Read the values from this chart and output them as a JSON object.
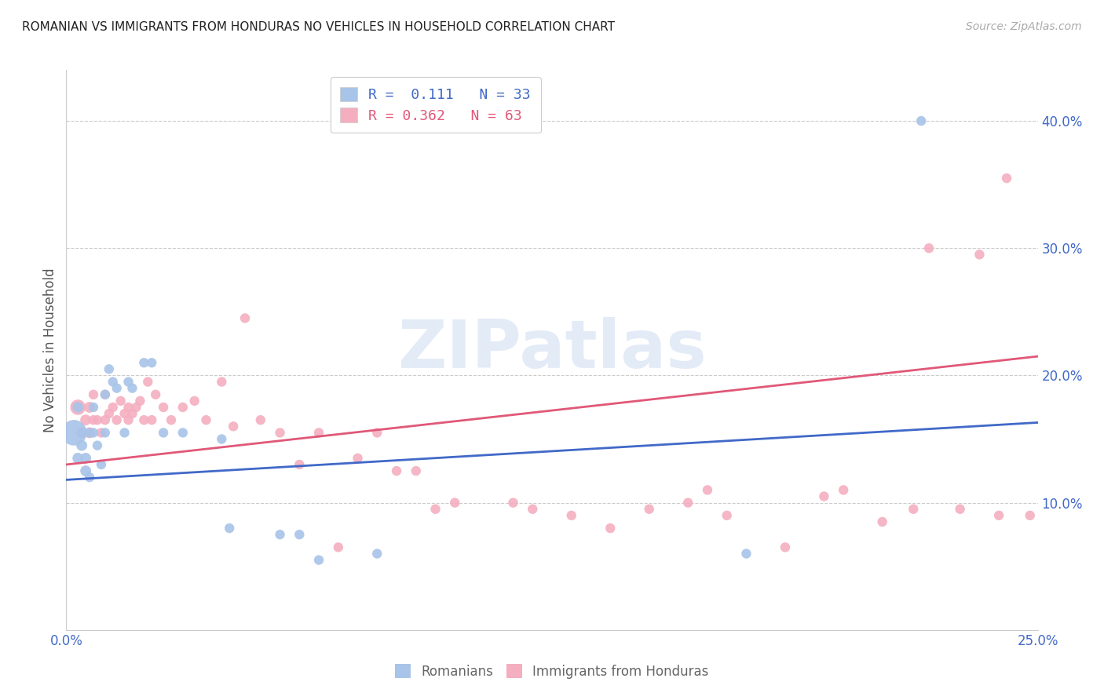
{
  "title": "ROMANIAN VS IMMIGRANTS FROM HONDURAS NO VEHICLES IN HOUSEHOLD CORRELATION CHART",
  "source": "Source: ZipAtlas.com",
  "ylabel": "No Vehicles in Household",
  "ytick_vals": [
    0.1,
    0.2,
    0.3,
    0.4
  ],
  "ytick_labels": [
    "10.0%",
    "20.0%",
    "30.0%",
    "40.0%"
  ],
  "xlim": [
    0.0,
    0.25
  ],
  "ylim": [
    0.0,
    0.44
  ],
  "blue_R": "0.111",
  "blue_N": "33",
  "pink_R": "0.362",
  "pink_N": "63",
  "blue_color": "#a8c4e8",
  "pink_color": "#f4aec0",
  "blue_line_color": "#4169c8",
  "pink_line_color": "#e05878",
  "watermark": "ZIPatlas",
  "legend_label_blue": "Romanians",
  "legend_label_pink": "Immigrants from Honduras",
  "blue_scatter_x": [
    0.002,
    0.003,
    0.003,
    0.004,
    0.004,
    0.005,
    0.005,
    0.006,
    0.006,
    0.007,
    0.007,
    0.008,
    0.009,
    0.01,
    0.01,
    0.011,
    0.012,
    0.013,
    0.015,
    0.016,
    0.017,
    0.02,
    0.022,
    0.025,
    0.03,
    0.04,
    0.042,
    0.055,
    0.06,
    0.065,
    0.08,
    0.175,
    0.22
  ],
  "blue_scatter_y": [
    0.155,
    0.175,
    0.135,
    0.155,
    0.145,
    0.135,
    0.125,
    0.155,
    0.12,
    0.155,
    0.175,
    0.145,
    0.13,
    0.185,
    0.155,
    0.205,
    0.195,
    0.19,
    0.155,
    0.195,
    0.19,
    0.21,
    0.21,
    0.155,
    0.155,
    0.15,
    0.08,
    0.075,
    0.075,
    0.055,
    0.06,
    0.06,
    0.4
  ],
  "blue_scatter_size": [
    550,
    100,
    100,
    100,
    100,
    100,
    100,
    80,
    80,
    80,
    80,
    80,
    80,
    80,
    80,
    80,
    80,
    80,
    80,
    80,
    80,
    80,
    80,
    80,
    80,
    80,
    80,
    80,
    80,
    80,
    80,
    80,
    80
  ],
  "pink_scatter_x": [
    0.003,
    0.004,
    0.005,
    0.006,
    0.006,
    0.007,
    0.007,
    0.008,
    0.009,
    0.01,
    0.01,
    0.011,
    0.012,
    0.013,
    0.014,
    0.015,
    0.016,
    0.016,
    0.017,
    0.018,
    0.019,
    0.02,
    0.021,
    0.022,
    0.023,
    0.025,
    0.027,
    0.03,
    0.033,
    0.036,
    0.04,
    0.043,
    0.046,
    0.05,
    0.055,
    0.06,
    0.065,
    0.07,
    0.075,
    0.08,
    0.085,
    0.09,
    0.095,
    0.1,
    0.115,
    0.12,
    0.13,
    0.14,
    0.15,
    0.16,
    0.165,
    0.17,
    0.185,
    0.195,
    0.2,
    0.21,
    0.218,
    0.222,
    0.23,
    0.235,
    0.24,
    0.242,
    0.248
  ],
  "pink_scatter_y": [
    0.175,
    0.155,
    0.165,
    0.155,
    0.175,
    0.165,
    0.185,
    0.165,
    0.155,
    0.165,
    0.185,
    0.17,
    0.175,
    0.165,
    0.18,
    0.17,
    0.175,
    0.165,
    0.17,
    0.175,
    0.18,
    0.165,
    0.195,
    0.165,
    0.185,
    0.175,
    0.165,
    0.175,
    0.18,
    0.165,
    0.195,
    0.16,
    0.245,
    0.165,
    0.155,
    0.13,
    0.155,
    0.065,
    0.135,
    0.155,
    0.125,
    0.125,
    0.095,
    0.1,
    0.1,
    0.095,
    0.09,
    0.08,
    0.095,
    0.1,
    0.11,
    0.09,
    0.065,
    0.105,
    0.11,
    0.085,
    0.095,
    0.3,
    0.095,
    0.295,
    0.09,
    0.355,
    0.09
  ],
  "pink_scatter_size": [
    200,
    100,
    100,
    100,
    100,
    80,
    80,
    80,
    80,
    80,
    80,
    80,
    80,
    80,
    80,
    80,
    80,
    80,
    80,
    80,
    80,
    80,
    80,
    80,
    80,
    80,
    80,
    80,
    80,
    80,
    80,
    80,
    80,
    80,
    80,
    80,
    80,
    80,
    80,
    80,
    80,
    80,
    80,
    80,
    80,
    80,
    80,
    80,
    80,
    80,
    80,
    80,
    80,
    80,
    80,
    80,
    80,
    80,
    80,
    80,
    80,
    80,
    80
  ],
  "blue_line_x": [
    0.0,
    0.25
  ],
  "blue_line_y": [
    0.118,
    0.163
  ],
  "pink_line_x": [
    0.0,
    0.25
  ],
  "pink_line_y": [
    0.13,
    0.215
  ]
}
